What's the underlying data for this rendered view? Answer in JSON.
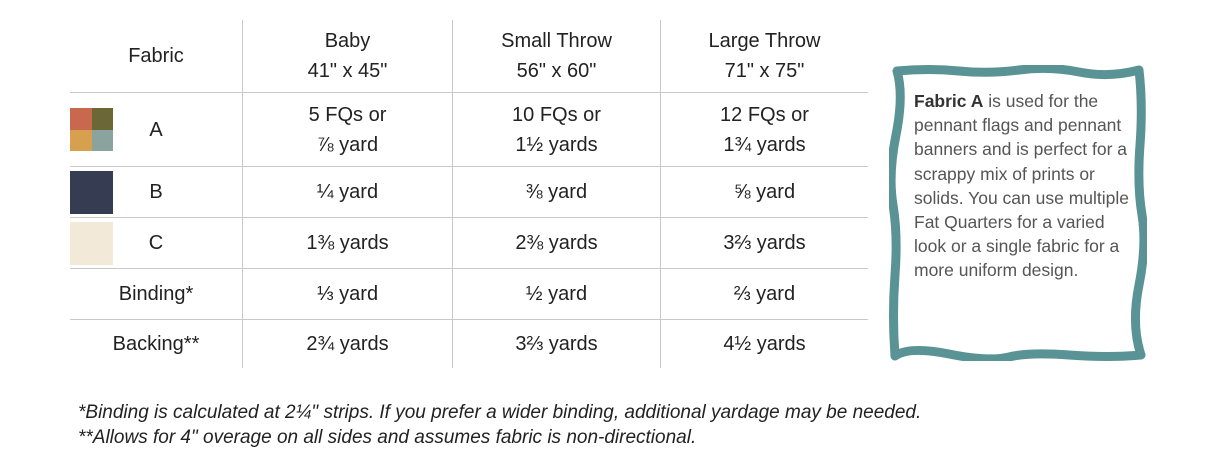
{
  "table": {
    "header": {
      "fabric_label": "Fabric",
      "columns": [
        {
          "name": "Baby",
          "size": "41\" x 45\""
        },
        {
          "name": "Small Throw",
          "size": "56\" x 60\""
        },
        {
          "name": "Large Throw",
          "size": "71\" x 75\""
        }
      ]
    },
    "rows": [
      {
        "label": "A",
        "values": [
          [
            "5 FQs or",
            "⅞ yard"
          ],
          [
            "10 FQs or",
            "1½ yards"
          ],
          [
            "12 FQs or",
            "1¾ yards"
          ]
        ]
      },
      {
        "label": "B",
        "values": [
          "¼ yard",
          "⅜ yard",
          "⅝ yard"
        ]
      },
      {
        "label": "C",
        "values": [
          "1⅜ yards",
          "2⅜ yards",
          "3⅔ yards"
        ]
      },
      {
        "label": "Binding*",
        "values": [
          "⅓ yard",
          "½ yard",
          "⅔ yard"
        ]
      },
      {
        "label": "Backing**",
        "values": [
          "2¾ yards",
          "3⅔ yards",
          "4½ yards"
        ]
      }
    ],
    "swatches": {
      "A": [
        "#c8694f",
        "#6b6836",
        "#d7a04f",
        "#8ba39e"
      ],
      "B": "#363d52",
      "C": "#f3e9d8"
    }
  },
  "note": {
    "bold": "Fabric A",
    "text": " is used for the pennant flags and pennant banners and is perfect for a scrappy mix of prints or solids. You can use multiple Fat Quarters for a varied look or a single fabric for a more uniform design.",
    "frame_color": "#5a9395"
  },
  "footnotes": [
    "*Binding is calculated at 2¼\" strips. If you prefer a wider binding, additional yardage may be needed.",
    "**Allows for 4\" overage on all sides and assumes fabric is non-directional."
  ]
}
